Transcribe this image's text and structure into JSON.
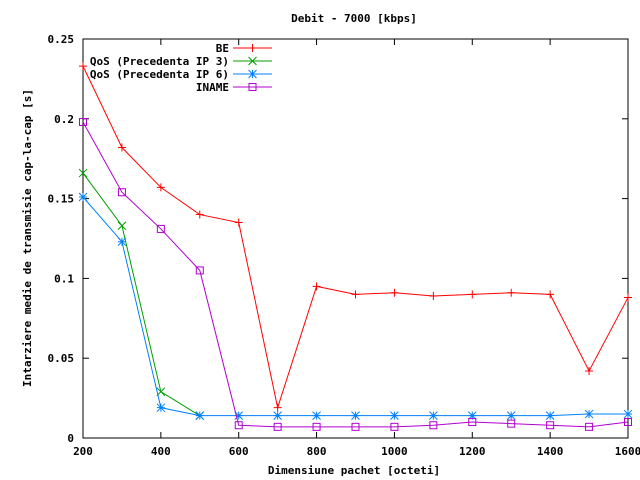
{
  "chart_data": {
    "type": "line",
    "title": "Debit - 7000 [kbps]",
    "xlabel": "Dimensiune pachet [octeti]",
    "ylabel": "Intarziere medie de transmisie cap-la-cap [s]",
    "xlim": [
      200,
      1600
    ],
    "ylim": [
      0,
      0.25
    ],
    "xticks": [
      200,
      400,
      600,
      800,
      1000,
      1200,
      1400,
      1600
    ],
    "yticks": [
      0,
      0.05,
      0.1,
      0.15,
      0.2,
      0.25
    ],
    "x_tick_labels": [
      "200",
      "400",
      "600",
      "800",
      "1000",
      "1200",
      "1400",
      "1600"
    ],
    "y_tick_labels": [
      "0",
      "0.05",
      "0.1",
      "0.15",
      "0.2",
      "0.25"
    ],
    "grid": false,
    "legend_position": "top-right",
    "x": [
      200,
      300,
      400,
      500,
      600,
      700,
      800,
      900,
      1000,
      1100,
      1200,
      1300,
      1400,
      1500,
      1600
    ],
    "series": [
      {
        "name": "BE",
        "color": "#ff0000",
        "marker": "plus",
        "values": [
          0.233,
          0.182,
          0.157,
          0.14,
          0.135,
          0.019,
          0.095,
          0.09,
          0.091,
          0.089,
          0.09,
          0.091,
          0.09,
          0.042,
          0.088
        ]
      },
      {
        "name": "QoS (Precedenta IP 3)",
        "color": "#00a000",
        "marker": "cross",
        "values": [
          0.166,
          0.133,
          0.029,
          0.014,
          null,
          null,
          null,
          null,
          null,
          null,
          null,
          null,
          null,
          null,
          null
        ]
      },
      {
        "name": "QoS (Precedenta IP 6)",
        "color": "#0080ff",
        "marker": "star",
        "values": [
          0.151,
          0.123,
          0.019,
          0.014,
          0.014,
          0.014,
          0.014,
          0.014,
          0.014,
          0.014,
          0.014,
          0.014,
          0.014,
          0.015,
          0.015
        ]
      },
      {
        "name": "INAME",
        "color": "#b000d0",
        "marker": "square",
        "values": [
          0.198,
          0.154,
          0.131,
          0.105,
          0.008,
          0.007,
          0.007,
          0.007,
          0.007,
          0.008,
          0.01,
          0.009,
          0.008,
          0.007,
          0.01
        ]
      }
    ]
  }
}
